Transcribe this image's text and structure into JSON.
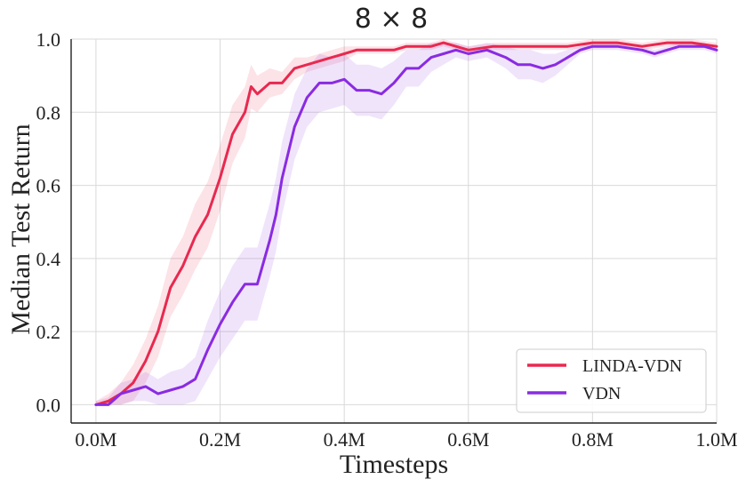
{
  "chart_data": {
    "type": "line",
    "title": "8 × 8",
    "xlabel": "Timesteps",
    "ylabel": "Median Test Return",
    "xlim": [
      -0.04,
      1.0
    ],
    "ylim": [
      -0.05,
      1.0
    ],
    "xticks": [
      0.0,
      0.2,
      0.4,
      0.6,
      0.8,
      1.0
    ],
    "xtick_labels": [
      "0.0M",
      "0.2M",
      "0.4M",
      "0.6M",
      "0.8M",
      "1.0M"
    ],
    "yticks": [
      0.0,
      0.2,
      0.4,
      0.6,
      0.8,
      1.0
    ],
    "ytick_labels": [
      "0.0",
      "0.2",
      "0.4",
      "0.6",
      "0.8",
      "1.0"
    ],
    "grid": true,
    "legend_position": "bottom-right",
    "series": [
      {
        "name": "LINDA-VDN",
        "color": "#e8294f",
        "x": [
          0.0,
          0.02,
          0.04,
          0.06,
          0.08,
          0.1,
          0.12,
          0.14,
          0.16,
          0.18,
          0.2,
          0.22,
          0.24,
          0.25,
          0.26,
          0.28,
          0.3,
          0.32,
          0.34,
          0.36,
          0.38,
          0.4,
          0.42,
          0.45,
          0.48,
          0.5,
          0.52,
          0.54,
          0.56,
          0.58,
          0.6,
          0.64,
          0.68,
          0.72,
          0.76,
          0.8,
          0.84,
          0.88,
          0.92,
          0.96,
          1.0
        ],
        "y": [
          0.0,
          0.01,
          0.03,
          0.06,
          0.12,
          0.2,
          0.32,
          0.38,
          0.46,
          0.52,
          0.62,
          0.74,
          0.8,
          0.87,
          0.85,
          0.88,
          0.88,
          0.92,
          0.93,
          0.94,
          0.95,
          0.96,
          0.97,
          0.97,
          0.97,
          0.98,
          0.98,
          0.98,
          0.99,
          0.98,
          0.97,
          0.98,
          0.98,
          0.98,
          0.98,
          0.99,
          0.99,
          0.98,
          0.99,
          0.99,
          0.98
        ],
        "band": [
          0.01,
          0.02,
          0.03,
          0.05,
          0.06,
          0.07,
          0.08,
          0.08,
          0.09,
          0.09,
          0.09,
          0.08,
          0.07,
          0.06,
          0.05,
          0.04,
          0.03,
          0.03,
          0.02,
          0.02,
          0.02,
          0.02,
          0.01,
          0.01,
          0.01,
          0.01,
          0.01,
          0.01,
          0.01,
          0.01,
          0.01,
          0.01,
          0.01,
          0.01,
          0.01,
          0.01,
          0.01,
          0.01,
          0.01,
          0.01,
          0.01
        ]
      },
      {
        "name": "VDN",
        "color": "#8a2be2",
        "x": [
          0.0,
          0.02,
          0.04,
          0.06,
          0.08,
          0.1,
          0.12,
          0.14,
          0.16,
          0.18,
          0.2,
          0.22,
          0.24,
          0.26,
          0.28,
          0.29,
          0.3,
          0.32,
          0.34,
          0.36,
          0.38,
          0.4,
          0.42,
          0.44,
          0.46,
          0.48,
          0.5,
          0.52,
          0.54,
          0.56,
          0.58,
          0.6,
          0.63,
          0.66,
          0.68,
          0.7,
          0.72,
          0.74,
          0.76,
          0.78,
          0.8,
          0.84,
          0.88,
          0.9,
          0.92,
          0.94,
          0.96,
          0.98,
          1.0
        ],
        "y": [
          0.0,
          0.0,
          0.03,
          0.04,
          0.05,
          0.03,
          0.04,
          0.05,
          0.07,
          0.15,
          0.22,
          0.28,
          0.33,
          0.33,
          0.45,
          0.52,
          0.62,
          0.76,
          0.84,
          0.88,
          0.88,
          0.89,
          0.86,
          0.86,
          0.85,
          0.88,
          0.92,
          0.92,
          0.95,
          0.96,
          0.97,
          0.96,
          0.97,
          0.95,
          0.93,
          0.93,
          0.92,
          0.93,
          0.95,
          0.97,
          0.98,
          0.98,
          0.97,
          0.96,
          0.97,
          0.98,
          0.98,
          0.98,
          0.97
        ],
        "band": [
          0.01,
          0.02,
          0.03,
          0.03,
          0.04,
          0.04,
          0.05,
          0.05,
          0.06,
          0.08,
          0.09,
          0.1,
          0.1,
          0.1,
          0.1,
          0.1,
          0.1,
          0.09,
          0.08,
          0.08,
          0.07,
          0.07,
          0.07,
          0.07,
          0.07,
          0.06,
          0.05,
          0.05,
          0.04,
          0.03,
          0.02,
          0.02,
          0.02,
          0.03,
          0.04,
          0.04,
          0.04,
          0.03,
          0.02,
          0.01,
          0.01,
          0.01,
          0.01,
          0.01,
          0.01,
          0.01,
          0.01,
          0.01,
          0.01
        ]
      }
    ]
  }
}
